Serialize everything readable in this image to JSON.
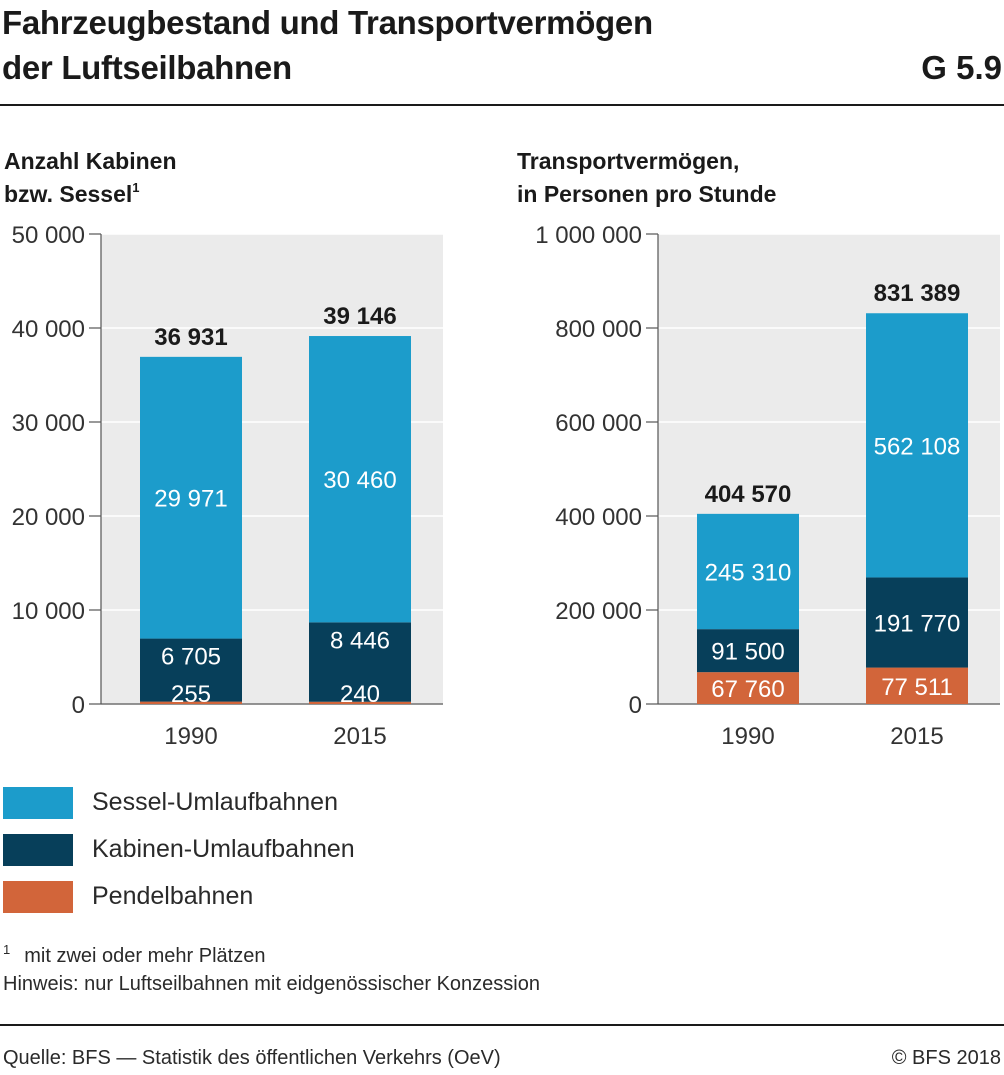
{
  "header": {
    "title_line1": "Fahrzeugbestand und Transportvermögen",
    "title_line2": "der Luftseilbahnen",
    "figure_code": "G 5.9"
  },
  "colors": {
    "sessel": "#1c9ccb",
    "kabinen": "#073f5a",
    "pendel": "#d2653a",
    "plot_bg": "#ebebeb"
  },
  "chart_data": [
    {
      "type": "bar",
      "stacked": true,
      "title_line1": "Anzahl Kabinen",
      "title_line2": "bzw. Sessel",
      "title_footnote": "1",
      "categories": [
        "1990",
        "2015"
      ],
      "ylim": [
        0,
        50000
      ],
      "ytick_values": [
        0,
        10000,
        20000,
        30000,
        40000,
        50000
      ],
      "ytick_labels": [
        "0",
        "10 000",
        "20 000",
        "30 000",
        "40 000",
        "50 000"
      ],
      "grid": true,
      "totals": [
        36931,
        39146
      ],
      "total_labels": [
        "36 931",
        "39 146"
      ],
      "series": [
        {
          "name": "Pendelbahnen",
          "values": [
            255,
            240
          ],
          "labels": [
            "255",
            "240"
          ],
          "color": "#d2653a"
        },
        {
          "name": "Kabinen-Umlaufbahnen",
          "values": [
            6705,
            8446
          ],
          "labels": [
            "6 705",
            "8 446"
          ],
          "color": "#073f5a"
        },
        {
          "name": "Sessel-Umlaufbahnen",
          "values": [
            29971,
            30460
          ],
          "labels": [
            "29 971",
            "30 460"
          ],
          "color": "#1c9ccb"
        }
      ]
    },
    {
      "type": "bar",
      "stacked": true,
      "title_line1": "Transportvermögen,",
      "title_line2": "in Personen pro Stunde",
      "title_footnote": "",
      "categories": [
        "1990",
        "2015"
      ],
      "ylim": [
        0,
        1000000
      ],
      "ytick_values": [
        0,
        200000,
        400000,
        600000,
        800000,
        1000000
      ],
      "ytick_labels": [
        "0",
        "200 000",
        "400 000",
        "600 000",
        "800 000",
        "1 000 000"
      ],
      "grid": true,
      "totals": [
        404570,
        831389
      ],
      "total_labels": [
        "404 570",
        "831 389"
      ],
      "series": [
        {
          "name": "Pendelbahnen",
          "values": [
            67760,
            77511
          ],
          "labels": [
            "67 760",
            "77 511"
          ],
          "color": "#d2653a"
        },
        {
          "name": "Kabinen-Umlaufbahnen",
          "values": [
            91500,
            191770
          ],
          "labels": [
            "91 500",
            "191 770"
          ],
          "color": "#073f5a"
        },
        {
          "name": "Sessel-Umlaufbahnen",
          "values": [
            245310,
            562108
          ],
          "labels": [
            "245 310",
            "562 108"
          ],
          "color": "#1c9ccb"
        }
      ]
    }
  ],
  "legend": [
    {
      "label": "Sessel-Umlaufbahnen",
      "color": "#1c9ccb"
    },
    {
      "label": "Kabinen-Umlaufbahnen",
      "color": "#073f5a"
    },
    {
      "label": "Pendelbahnen",
      "color": "#d2653a"
    }
  ],
  "notes": {
    "footnote_mark": "1",
    "footnote_text": "mit zwei oder mehr Plätzen",
    "hint": "Hinweis: nur Luftseilbahnen mit eidgenössischer Konzession"
  },
  "footer": {
    "source": "Quelle: BFS — Statistik des öffentlichen Verkehrs (OeV)",
    "copyright": "© BFS 2018"
  }
}
